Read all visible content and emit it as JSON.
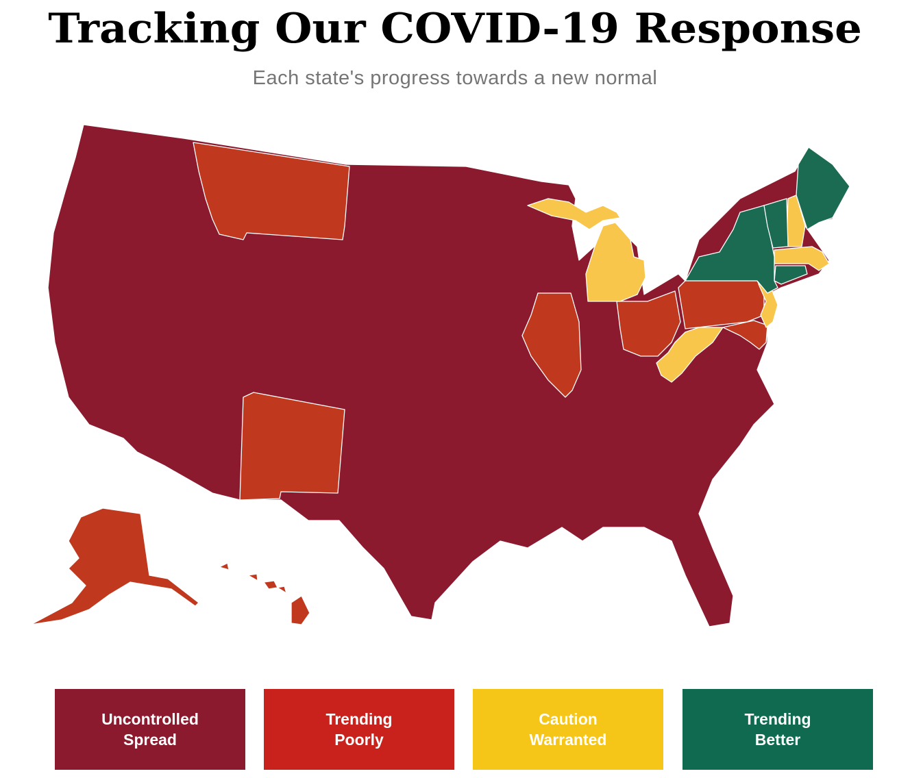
{
  "title": "Tracking Our COVID-19 Response",
  "subtitle": "Each state's progress towards a new normal",
  "colors": {
    "uncontrolled": "#8b1a2e",
    "poorly": "#c0391f",
    "caution": "#f7c64a",
    "better": "#1a6b52"
  },
  "legend": [
    {
      "line1": "Uncontrolled",
      "line2": "Spread",
      "color": "#8b1a2e"
    },
    {
      "line1": "Trending",
      "line2": "Poorly",
      "color": "#c9221c"
    },
    {
      "line1": "Caution",
      "line2": "Warranted",
      "color": "#f5c518"
    },
    {
      "line1": "Trending",
      "line2": "Better",
      "color": "#0f6a50"
    }
  ],
  "states": {
    "uncontrolled": [
      "WA",
      "OR",
      "CA",
      "NV",
      "ID",
      "UT",
      "AZ",
      "WY",
      "CO",
      "ND",
      "SD",
      "NE",
      "KS",
      "OK",
      "TX",
      "MN",
      "IA",
      "MO",
      "AR",
      "LA",
      "WI",
      "IN",
      "KY",
      "TN",
      "MS",
      "AL",
      "GA",
      "FL",
      "SC",
      "NC",
      "VA",
      "RI"
    ],
    "poorly": [
      "MT",
      "NM",
      "IL",
      "OH",
      "PA",
      "MD",
      "DE",
      "AK",
      "HI"
    ],
    "caution": [
      "MI",
      "WV",
      "NJ",
      "NH",
      "MA"
    ],
    "better": [
      "NY",
      "VT",
      "ME",
      "CT"
    ]
  }
}
